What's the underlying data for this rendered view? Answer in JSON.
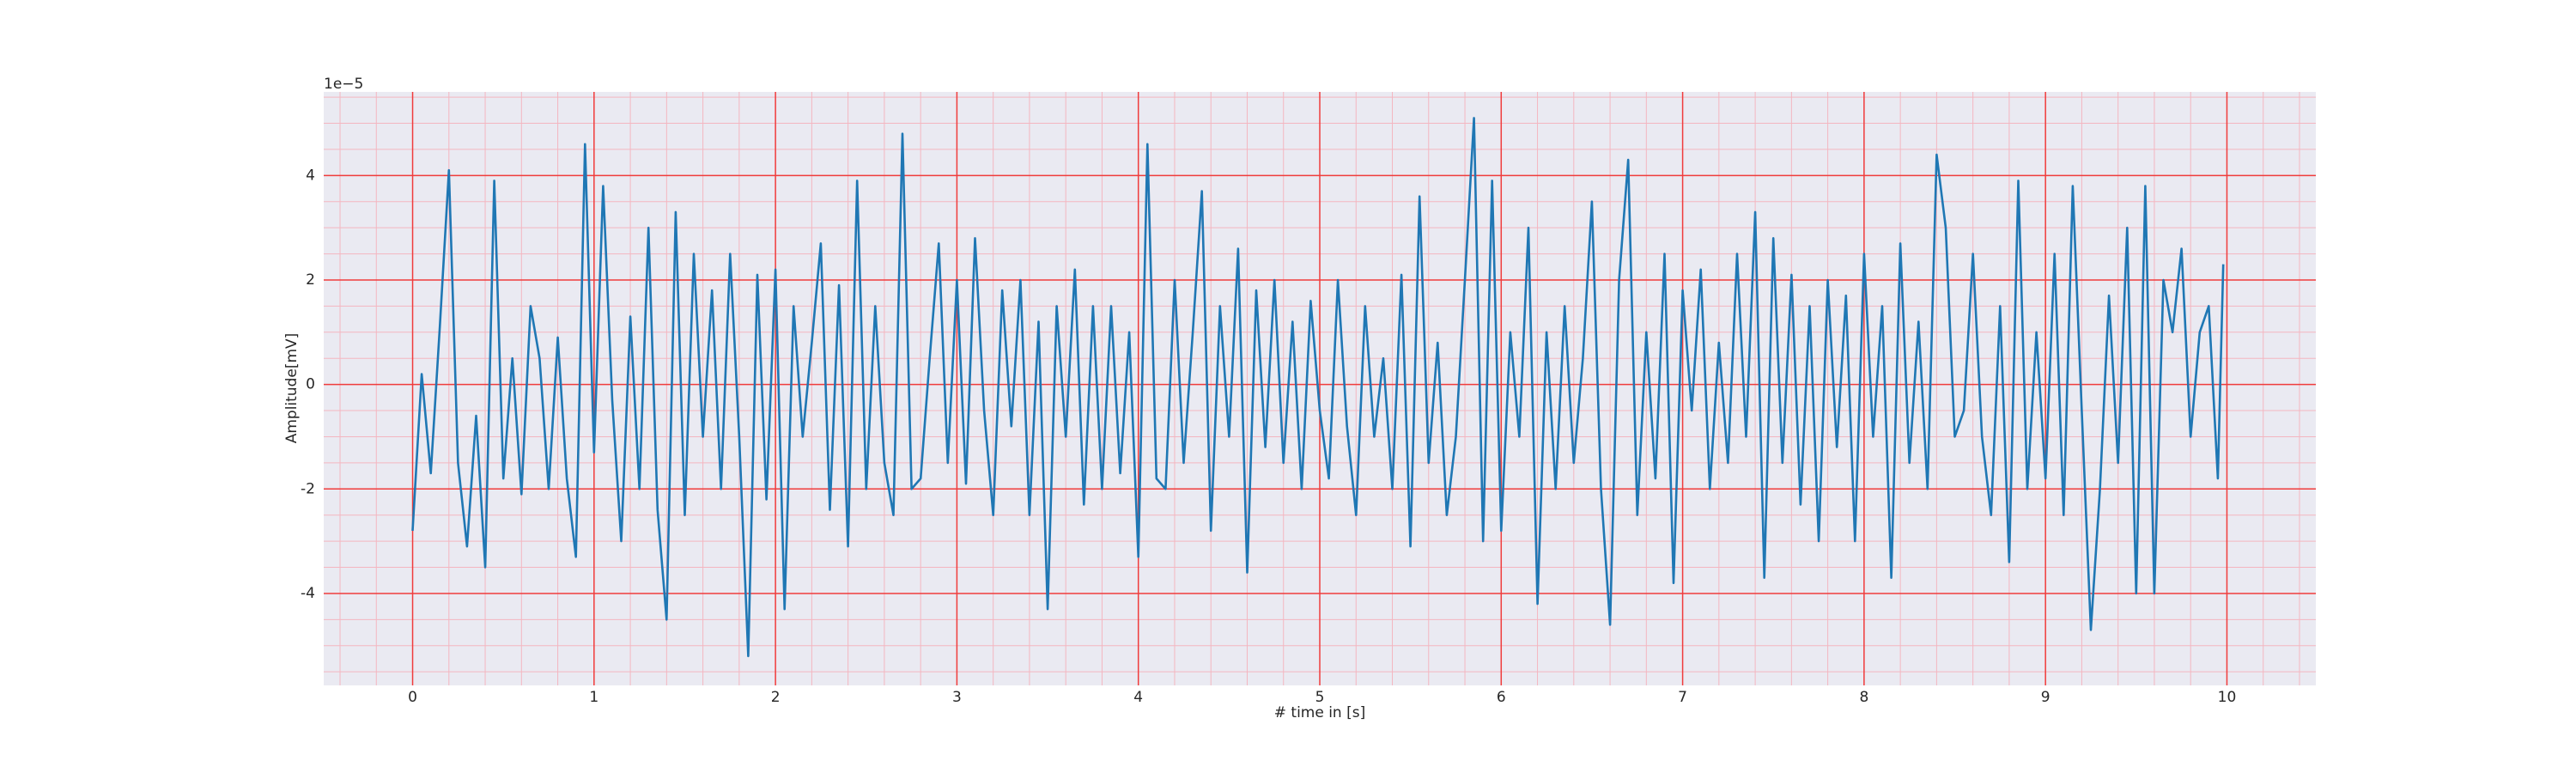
{
  "chart_data": {
    "type": "line",
    "xlabel": "# time in [s]",
    "ylabel": "Amplitude[mV]",
    "offset_label": "1e−5",
    "xlim": [
      -0.49,
      10.49
    ],
    "ylim": [
      -5.76,
      5.6
    ],
    "xticks": [
      0,
      1,
      2,
      3,
      4,
      5,
      6,
      7,
      8,
      9,
      10
    ],
    "yticks": [
      -4,
      -2,
      0,
      2,
      4
    ],
    "grid": true,
    "grid_color": "#f03c3c",
    "minor_grid": {
      "xstep": 0.2,
      "ystep": 0.5,
      "color": "#f4b6c0"
    },
    "background": "#eaeaf2",
    "series": [
      {
        "color": "#1f77b4",
        "x": [
          0,
          0.05,
          0.1,
          0.15,
          0.2,
          0.25,
          0.3,
          0.35,
          0.4,
          0.45,
          0.5,
          0.55,
          0.6,
          0.65,
          0.7,
          0.75,
          0.8,
          0.85,
          0.9,
          0.95,
          1,
          1.05,
          1.1,
          1.15,
          1.2,
          1.25,
          1.3,
          1.35,
          1.4,
          1.45,
          1.5,
          1.55,
          1.6,
          1.65,
          1.7,
          1.75,
          1.8,
          1.85,
          1.9,
          1.95,
          2,
          2.05,
          2.1,
          2.15,
          2.2,
          2.25,
          2.3,
          2.35,
          2.4,
          2.45,
          2.5,
          2.55,
          2.6,
          2.65,
          2.7,
          2.75,
          2.8,
          2.85,
          2.9,
          2.95,
          3,
          3.05,
          3.1,
          3.15,
          3.2,
          3.25,
          3.3,
          3.35,
          3.4,
          3.45,
          3.5,
          3.55,
          3.6,
          3.65,
          3.7,
          3.75,
          3.8,
          3.85,
          3.9,
          3.95,
          4,
          4.05,
          4.1,
          4.15,
          4.2,
          4.25,
          4.3,
          4.35,
          4.4,
          4.45,
          4.5,
          4.55,
          4.6,
          4.65,
          4.7,
          4.75,
          4.8,
          4.85,
          4.9,
          4.95,
          5,
          5.05,
          5.1,
          5.15,
          5.2,
          5.25,
          5.3,
          5.35,
          5.4,
          5.45,
          5.5,
          5.55,
          5.6,
          5.65,
          5.7,
          5.75,
          5.8,
          5.85,
          5.9,
          5.95,
          6,
          6.05,
          6.1,
          6.15,
          6.2,
          6.25,
          6.3,
          6.35,
          6.4,
          6.45,
          6.5,
          6.55,
          6.6,
          6.65,
          6.7,
          6.75,
          6.8,
          6.85,
          6.9,
          6.95,
          7,
          7.05,
          7.1,
          7.15,
          7.2,
          7.25,
          7.3,
          7.35,
          7.4,
          7.45,
          7.5,
          7.55,
          7.6,
          7.65,
          7.7,
          7.75,
          7.8,
          7.85,
          7.9,
          7.95,
          8,
          8.05,
          8.1,
          8.15,
          8.2,
          8.25,
          8.3,
          8.35,
          8.4,
          8.45,
          8.5,
          8.55,
          8.6,
          8.65,
          8.7,
          8.75,
          8.8,
          8.85,
          8.9,
          8.95,
          9,
          9.05,
          9.1,
          9.15,
          9.2,
          9.25,
          9.3,
          9.35,
          9.4,
          9.45,
          9.5,
          9.55,
          9.6,
          9.65,
          9.7,
          9.75,
          9.8,
          9.85,
          9.9,
          9.95,
          9.98
        ],
        "values": [
          -2.8,
          0.2,
          -1.7,
          1.1,
          4.1,
          -1.5,
          -3.1,
          -0.6,
          -3.5,
          3.9,
          -1.8,
          0.5,
          -2.1,
          1.5,
          0.5,
          -2.0,
          0.9,
          -1.8,
          -3.3,
          4.6,
          -1.3,
          3.8,
          -0.3,
          -3.0,
          1.3,
          -2.0,
          3.0,
          -2.4,
          -4.5,
          3.3,
          -2.5,
          2.5,
          -1.0,
          1.8,
          -2.0,
          2.5,
          -1.0,
          -5.2,
          2.1,
          -2.2,
          2.2,
          -4.3,
          1.5,
          -1.0,
          0.8,
          2.7,
          -2.4,
          1.9,
          -3.1,
          3.9,
          -2.0,
          1.5,
          -1.5,
          -2.5,
          4.8,
          -2.0,
          -1.8,
          0.5,
          2.7,
          -1.5,
          2.0,
          -1.9,
          2.8,
          -0.5,
          -2.5,
          1.8,
          -0.8,
          2.0,
          -2.5,
          1.2,
          -4.3,
          1.5,
          -1.0,
          2.2,
          -2.3,
          1.5,
          -2.0,
          1.5,
          -1.7,
          1.0,
          -3.3,
          4.6,
          -1.8,
          -2.0,
          2.0,
          -1.5,
          1.0,
          3.7,
          -2.8,
          1.5,
          -1.0,
          2.6,
          -3.6,
          1.8,
          -1.2,
          2.0,
          -1.5,
          1.2,
          -2.0,
          1.6,
          -0.5,
          -1.8,
          2.0,
          -0.8,
          -2.5,
          1.5,
          -1.0,
          0.5,
          -2.0,
          2.1,
          -3.1,
          3.6,
          -1.5,
          0.8,
          -2.5,
          -1.0,
          2.0,
          5.1,
          -3.0,
          3.9,
          -2.8,
          1.0,
          -1.0,
          3.0,
          -4.2,
          1.0,
          -2.0,
          1.5,
          -1.5,
          0.5,
          3.5,
          -2.0,
          -4.6,
          2.0,
          4.3,
          -2.5,
          1.0,
          -1.8,
          2.5,
          -3.8,
          1.8,
          -0.5,
          2.2,
          -2.0,
          0.8,
          -1.5,
          2.5,
          -1.0,
          3.3,
          -3.7,
          2.8,
          -1.5,
          2.1,
          -2.3,
          1.5,
          -3.0,
          2.0,
          -1.2,
          1.7,
          -3.0,
          2.5,
          -1.0,
          1.5,
          -3.7,
          2.7,
          -1.5,
          1.2,
          -2.0,
          4.4,
          3.0,
          -1.0,
          -0.5,
          2.5,
          -1.0,
          -2.5,
          1.5,
          -3.4,
          3.9,
          -2.0,
          1.0,
          -1.8,
          2.5,
          -2.5,
          3.8,
          -0.5,
          -4.7,
          -2.0,
          1.7,
          -1.5,
          3.0,
          -4.0,
          3.8,
          -4.0,
          2.0,
          1.0,
          2.6,
          -1.0,
          1.0,
          1.5,
          -1.8,
          2.3
        ]
      }
    ]
  }
}
